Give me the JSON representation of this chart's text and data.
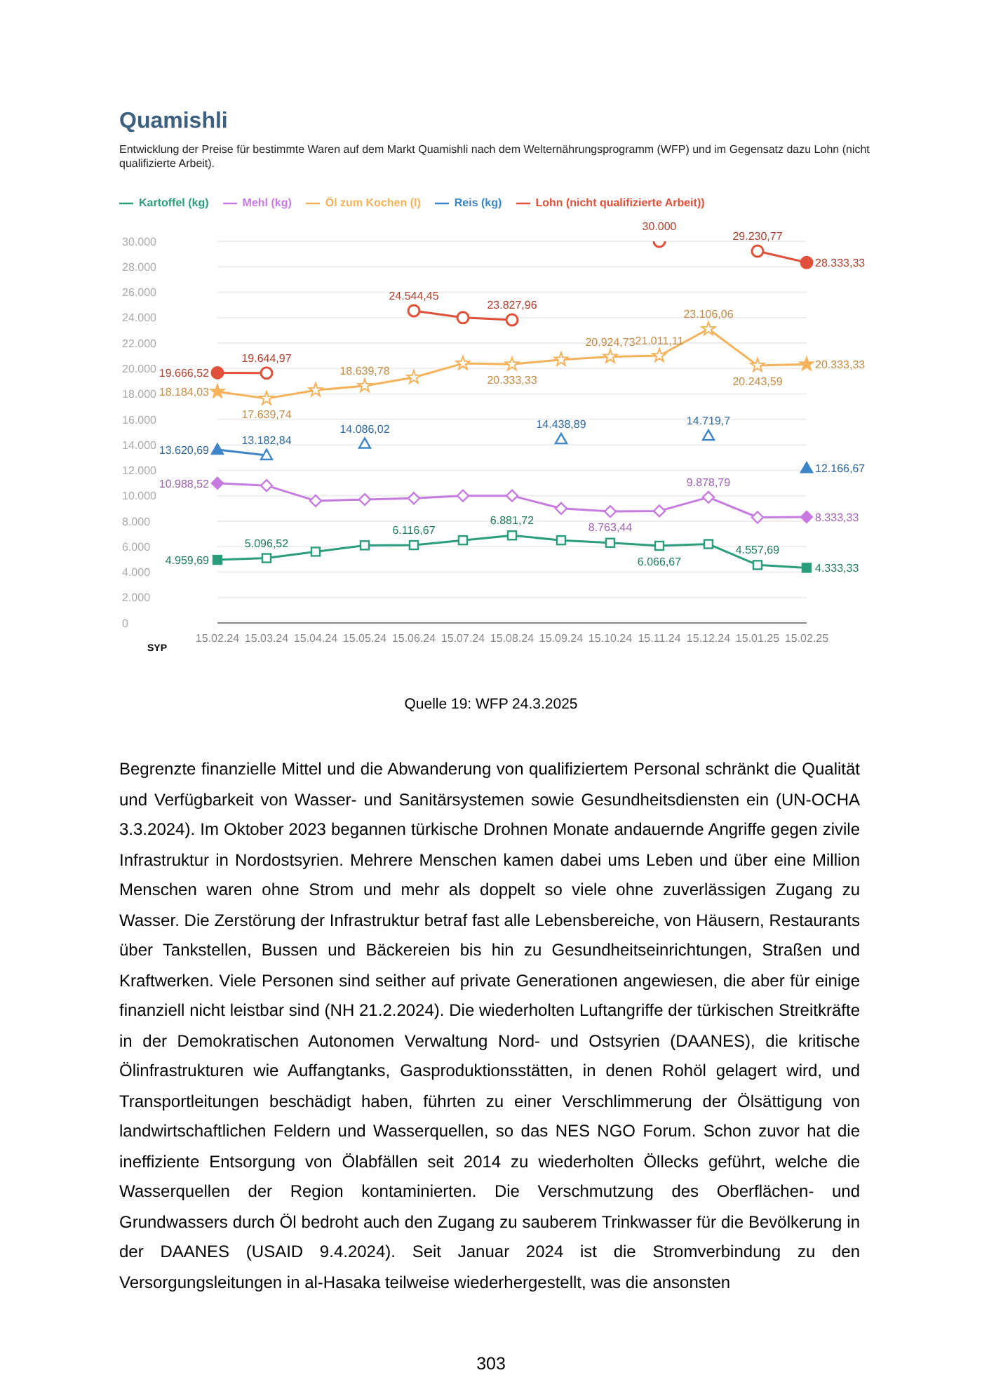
{
  "chart_data": {
    "type": "line",
    "title": "Quamishli",
    "subtitle": "Entwicklung der Preise für bestimmte Waren auf dem Markt Quamishli nach dem Welternährungsprogramm (WFP) und im Gegensatz dazu Lohn (nicht qualifizierte Arbeit).",
    "ylabel": "SYP",
    "categories": [
      "15.02.24",
      "15.03.24",
      "15.04.24",
      "15.05.24",
      "15.06.24",
      "15.07.24",
      "15.08.24",
      "15.09.24",
      "15.10.24",
      "15.11.24",
      "15.12.24",
      "15.01.25",
      "15.02.25"
    ],
    "series": [
      {
        "name": "Kartoffel (kg)",
        "color": "#2a9d7c",
        "marker": "square",
        "values": [
          4959.69,
          5096.52,
          5600,
          6100,
          6116.67,
          6500,
          6881.72,
          6500,
          6300,
          6066.67,
          6200,
          4557.69,
          4333.33
        ],
        "value_labels": [
          "4.959,69",
          "5.096,52",
          null,
          null,
          "6.116,67",
          null,
          "6.881,72",
          null,
          null,
          "6.066,67",
          null,
          "4.557,69",
          "4.333,33"
        ]
      },
      {
        "name": "Mehl (kg)",
        "color": "#c77be0",
        "marker": "diamond",
        "values": [
          10988.52,
          10800,
          9600,
          9700,
          9800,
          10000,
          10000,
          9000,
          8763.44,
          8800,
          9878.79,
          8300,
          8333.33
        ],
        "value_labels": [
          "10.988,52",
          null,
          null,
          null,
          null,
          null,
          null,
          null,
          "8.763,44",
          null,
          "9.878,79",
          null,
          "8.333,33"
        ]
      },
      {
        "name": "Öl zum Kochen (l)",
        "color": "#f5b25a",
        "marker": "star",
        "values": [
          18184.03,
          17639.74,
          18300,
          18639.78,
          19300,
          20400,
          20333.33,
          20700,
          20924.73,
          21011.11,
          23106.06,
          20243.59,
          20333.33
        ],
        "value_labels": [
          "18.184,03",
          "17.639,74",
          null,
          "18.639,78",
          null,
          null,
          "20.333,33",
          null,
          "20.924,73",
          "21.011,11",
          "23.106,06",
          "20.243,59",
          "20.333,33"
        ]
      },
      {
        "name": "Reis (kg)",
        "color": "#3d85c6",
        "marker": "triangle",
        "values": [
          13620.69,
          13182.84,
          null,
          14086.02,
          null,
          null,
          null,
          14438.89,
          null,
          null,
          14719.7,
          null,
          12166.67
        ],
        "value_labels": [
          "13.620,69",
          "13.182,84",
          null,
          "14.086,02",
          null,
          null,
          null,
          "14.438,89",
          null,
          null,
          "14.719,7",
          null,
          "12.166,67"
        ]
      },
      {
        "name": "Lohn (nicht qualifizierte Arbeit))",
        "color": "#e0503a",
        "marker": "circle",
        "values": [
          19666.52,
          19644.97,
          null,
          null,
          24544.45,
          24000,
          23827.96,
          null,
          null,
          30000,
          null,
          29230.77,
          28333.33
        ],
        "value_labels": [
          "19.666,52",
          "19.644,97",
          null,
          null,
          "24.544,45",
          null,
          "23.827,96",
          null,
          null,
          "30.000",
          null,
          "29.230,77",
          "28.333,33"
        ]
      }
    ],
    "ylim": [
      0,
      30000
    ],
    "yticks": [
      0,
      {
        "value": 2000,
        "label": "2.000"
      },
      {
        "value": 4000,
        "label": "4.000"
      },
      {
        "value": 6000,
        "label": "6.000"
      },
      {
        "value": 8000,
        "label": "8.000"
      },
      {
        "value": 10000,
        "label": "10.000"
      },
      {
        "value": 12000,
        "label": "12.000"
      },
      {
        "value": 14000,
        "label": "14.000"
      },
      {
        "value": 16000,
        "label": "16.000"
      },
      {
        "value": 18000,
        "label": "18.000"
      },
      {
        "value": 20000,
        "label": "20.000"
      },
      {
        "value": 22000,
        "label": "22.000"
      },
      {
        "value": 24000,
        "label": "24.000"
      },
      {
        "value": 26000,
        "label": "26.000"
      },
      {
        "value": 28000,
        "label": "28.000"
      },
      {
        "value": 30000,
        "label": "30.000"
      }
    ],
    "grid": "y",
    "legend": "top left",
    "annotations": [
      "Quelle 19: WFP 24.3.2025",
      "Begrenzte finanzielle Mittel und die Abwanderung von qualifiziertem Personal schränkt die Qualität und Verfügbarkeit von Wasser- und Sanitärsystemen sowie Gesundheitsdiensten ein (UN-OCHA 3.3.2024). Im Oktober 2023 begannen türkische Drohnen Monate andauernde Angriffe gegen zivile Infrastruktur in Nordostsyrien. Mehrere Menschen kamen dabei ums Leben und über eine Million Menschen waren ohne Strom und mehr als doppelt so viele ohne zuverlässigen Zugang zu Wasser. Die Zerstörung der Infrastruktur betraf fast alle Lebensbereiche, von Häusern, Restaurants über Tankstellen, Bussen und Bäckereien bis hin zu Gesundheitseinrichtungen, Straßen und Kraftwerken. Viele Personen sind seither auf private Generationen angewiesen, die aber für einige finanziell nicht leistbar sind (NH 21.2.2024). Die wiederholten Luftangriffe der türkischen Streitkräfte in der Demokratischen Autonomen Verwaltung Nord- und Ostsyrien (DAANES), die kritische Ölinfrastrukturen wie Auffangtanks, Gasproduktionsstätten, in denen Rohöl gelagert wird, und Transportleitungen beschädigt haben, führten zu einer Verschlimmerung der Ölsättigung von landwirtschaftlichen Feldern und Wasserquellen, so das NES NGO Forum. Schon zuvor hat die ineffiziente Entsorgung von Ölabfällen seit 2014 zu wiederholten Öllecks geführt, welche die Wasserquellen der Region kontaminierten. Die Verschmutzung des Oberflächen- und Grundwassers durch Öl bedroht auch den Zugang zu sauberem Trinkwasser für die Bevölkerung in der DAANES (USAID 9.4.2024). Seit Januar 2024 ist die Stromverbindung zu den Versorgungsleitungen in al-Hasaka teilweise wiederhergestellt, was die ansonsten",
      "303"
    ]
  }
}
